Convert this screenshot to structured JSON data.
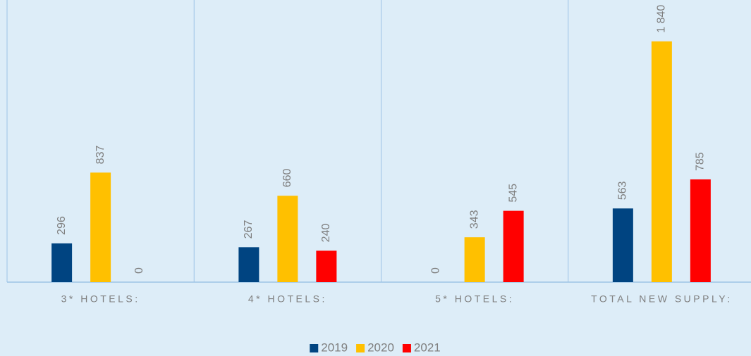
{
  "chart_data": {
    "type": "bar",
    "categories": [
      "3* HOTELS:",
      "4* HOTELS:",
      "5* HOTELS:",
      "TOTAL NEW SUPPLY:"
    ],
    "series": [
      {
        "name": "2019",
        "color": "#004481",
        "values": [
          296,
          267,
          0,
          563
        ]
      },
      {
        "name": "2020",
        "color": "#ffc000",
        "values": [
          837,
          660,
          343,
          1840
        ],
        "value_labels": [
          "837",
          "660",
          "343",
          "1 840"
        ]
      },
      {
        "name": "2021",
        "color": "#ff0000",
        "values": [
          0,
          240,
          545,
          785
        ]
      }
    ],
    "ylim": [
      0,
      2000
    ],
    "legend": "bottom"
  }
}
